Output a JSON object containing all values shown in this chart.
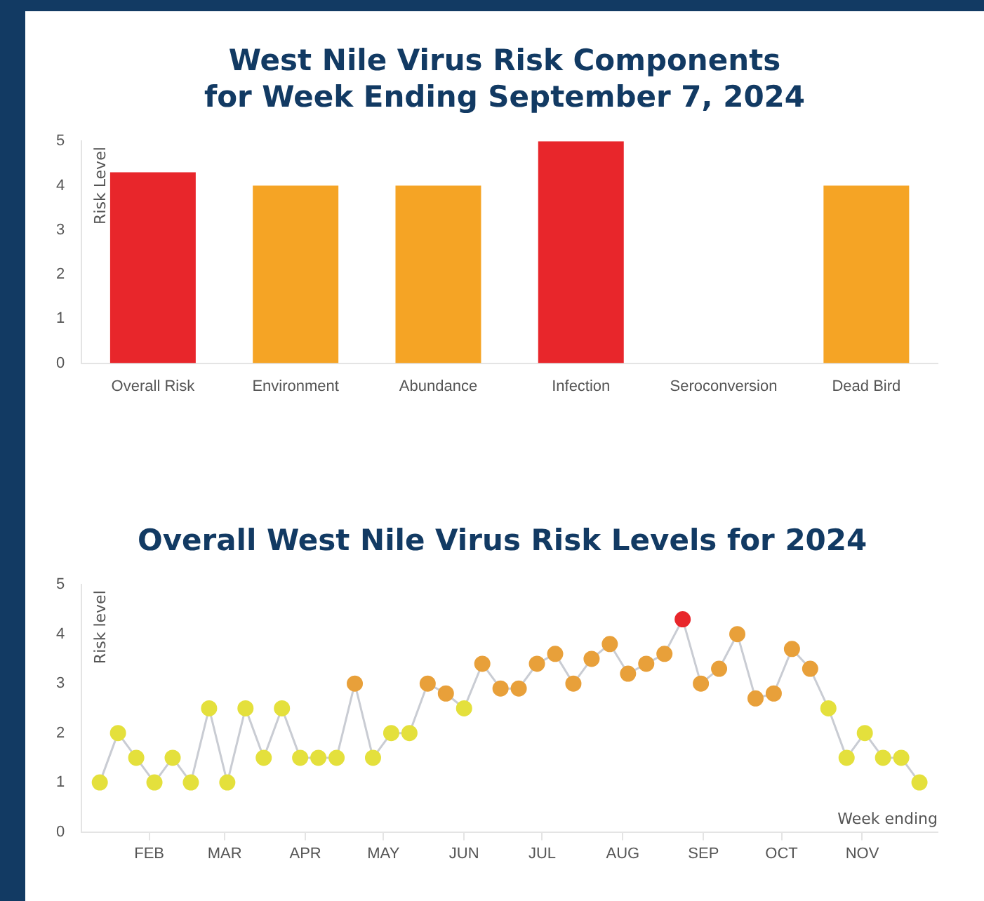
{
  "chart_data": [
    {
      "type": "bar",
      "title": "West Nile Virus Risk Components\nfor Week Ending September 7, 2024",
      "ylabel": "Risk Level",
      "categories": [
        "Overall Risk",
        "Environment",
        "Abundance",
        "Infection",
        "Seroconversion",
        "Dead Bird"
      ],
      "values": [
        4.3,
        4,
        4,
        5,
        0,
        4
      ],
      "colors": [
        "#e8262b",
        "#f5a425",
        "#f5a425",
        "#e8262b",
        "#f5a425",
        "#f5a425"
      ],
      "ylim": [
        0,
        5
      ],
      "yticks": [
        0,
        1,
        2,
        3,
        4,
        5
      ],
      "grid": false
    },
    {
      "type": "line",
      "title": "Overall West Nile Virus Risk Levels for 2024",
      "ylabel": "Risk level",
      "xlabel": "Week ending",
      "x": [
        "2024-01-27",
        "2024-02-03",
        "2024-02-10",
        "2024-02-17",
        "2024-02-24",
        "2024-03-02",
        "2024-03-09",
        "2024-03-16",
        "2024-03-23",
        "2024-03-30",
        "2024-04-06",
        "2024-04-13",
        "2024-04-20",
        "2024-04-27",
        "2024-05-04",
        "2024-05-11",
        "2024-05-18",
        "2024-05-25",
        "2024-06-01",
        "2024-06-08",
        "2024-06-15",
        "2024-06-22",
        "2024-06-29",
        "2024-07-06",
        "2024-07-13",
        "2024-07-20",
        "2024-07-27",
        "2024-08-03",
        "2024-08-10",
        "2024-08-17",
        "2024-08-24",
        "2024-08-31",
        "2024-09-07",
        "2024-09-14",
        "2024-09-21",
        "2024-09-28",
        "2024-10-05",
        "2024-10-12",
        "2024-10-19",
        "2024-10-26",
        "2024-11-02",
        "2024-11-09",
        "2024-11-16",
        "2024-11-23",
        "2024-11-30",
        "2024-12-07"
      ],
      "series": [
        {
          "color": "#c9ccd3",
          "values": [
            1,
            2,
            1.5,
            1,
            1.5,
            1,
            2.5,
            1,
            2.5,
            1.5,
            2.5,
            1.5,
            1.5,
            1.5,
            3,
            1.5,
            2,
            2,
            3,
            2.8,
            2.5,
            3.4,
            2.9,
            2.9,
            3.4,
            3.6,
            3.0,
            3.5,
            3.8,
            3.2,
            3.4,
            3.6,
            4.3,
            3.0,
            3.3,
            4.0,
            2.7,
            2.8,
            3.7,
            3.3,
            2.5,
            1.5,
            2.0,
            1.5,
            1.5,
            1.0
          ],
          "colors": [
            "#e4e03c",
            "#e4e03c",
            "#e4e03c",
            "#e4e03c",
            "#e4e03c",
            "#e4e03c",
            "#e4e03c",
            "#e4e03c",
            "#e4e03c",
            "#e4e03c",
            "#e4e03c",
            "#e4e03c",
            "#e4e03c",
            "#e4e03c",
            "#e8a03a",
            "#e4e03c",
            "#e4e03c",
            "#e4e03c",
            "#e8a03a",
            "#e8a03a",
            "#e4e03c",
            "#e8a03a",
            "#e8a03a",
            "#e8a03a",
            "#e8a03a",
            "#e8a03a",
            "#e8a03a",
            "#e8a03a",
            "#e8a03a",
            "#e8a03a",
            "#e8a03a",
            "#e8a03a",
            "#e8262b",
            "#e8a03a",
            "#e8a03a",
            "#e8a03a",
            "#e8a03a",
            "#e8a03a",
            "#e8a03a",
            "#e8a03a",
            "#e4e03c",
            "#e4e03c",
            "#e4e03c",
            "#e4e03c",
            "#e4e03c",
            "#e4e03c"
          ]
        }
      ],
      "xlim": [
        "2024-01-20",
        "2024-12-14"
      ],
      "xticks": [
        {
          "value": "2024-02-15",
          "label": "FEB"
        },
        {
          "value": "2024-03-15",
          "label": "MAR"
        },
        {
          "value": "2024-04-15",
          "label": "APR"
        },
        {
          "value": "2024-05-15",
          "label": "MAY"
        },
        {
          "value": "2024-06-15",
          "label": "JUN"
        },
        {
          "value": "2024-07-15",
          "label": "JUL"
        },
        {
          "value": "2024-08-15",
          "label": "AUG"
        },
        {
          "value": "2024-09-15",
          "label": "SEP"
        },
        {
          "value": "2024-10-15",
          "label": "OCT"
        },
        {
          "value": "2024-11-15",
          "label": "NOV"
        }
      ],
      "ylim": [
        0,
        5
      ],
      "yticks": [
        0,
        1,
        2,
        3,
        4,
        5
      ],
      "grid": false,
      "marker": "circle",
      "line_style": "solid"
    }
  ]
}
